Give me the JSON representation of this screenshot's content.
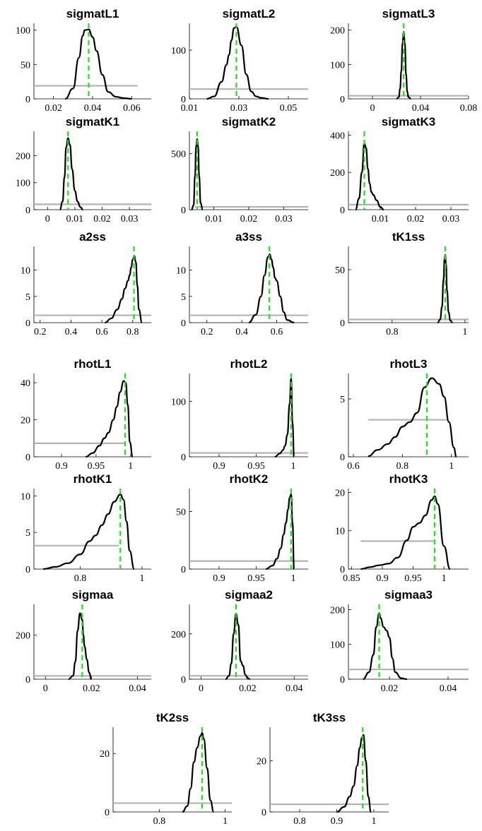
{
  "chart_data": [
    {
      "type": "line",
      "title": "sigmatL1",
      "xlim": [
        0.01,
        0.07
      ],
      "ylim": [
        0,
        110
      ],
      "xticks": [
        0.02,
        0.04,
        0.06
      ],
      "xtick_labels": [
        "0.02",
        "0.04",
        "0.06"
      ],
      "yticks": [
        0,
        50,
        100
      ],
      "ytick_labels": [
        "0",
        "50",
        "100"
      ],
      "prior": {
        "x": [
          0.01,
          0.063
        ],
        "y": 19
      },
      "mode": 0.038,
      "posterior": {
        "x": [
          0.026,
          0.03,
          0.033,
          0.035,
          0.036,
          0.038,
          0.04,
          0.042,
          0.045,
          0.048,
          0.052,
          0.056,
          0.06
        ],
        "y": [
          0,
          15,
          60,
          92,
          100,
          101,
          90,
          70,
          35,
          10,
          3,
          1,
          0
        ]
      }
    },
    {
      "type": "line",
      "title": "sigmatL2",
      "xlim": [
        0.01,
        0.058
      ],
      "ylim": [
        0,
        155
      ],
      "xticks": [
        0.01,
        0.03,
        0.05
      ],
      "xtick_labels": [
        "0.01",
        "0.03",
        "0.05"
      ],
      "yticks": [
        0,
        100
      ],
      "ytick_labels": [
        "0",
        "100"
      ],
      "prior": {
        "x": [
          0.01,
          0.058
        ],
        "y": 20
      },
      "mode": 0.029,
      "posterior": {
        "x": [
          0.017,
          0.02,
          0.023,
          0.025,
          0.026,
          0.027,
          0.028,
          0.029,
          0.031,
          0.033,
          0.035,
          0.037,
          0.039,
          0.042
        ],
        "y": [
          0,
          5,
          35,
          70,
          90,
          120,
          145,
          148,
          110,
          50,
          15,
          5,
          2,
          0
        ]
      }
    },
    {
      "type": "line",
      "title": "sigmatL3",
      "xlim": [
        -0.02,
        0.08
      ],
      "ylim": [
        0,
        220
      ],
      "xticks": [
        0,
        0.04,
        0.08
      ],
      "xtick_labels": [
        "0",
        "0.04",
        "0.08"
      ],
      "yticks": [
        0,
        100,
        200
      ],
      "ytick_labels": [
        "0",
        "100",
        "200"
      ],
      "prior": {
        "x": [
          -0.02,
          0.08
        ],
        "y": 9
      },
      "mode": 0.026,
      "posterior": {
        "x": [
          0.02,
          0.022,
          0.023,
          0.024,
          0.025,
          0.026,
          0.027,
          0.028,
          0.029,
          0.03,
          0.032
        ],
        "y": [
          0,
          5,
          30,
          80,
          160,
          195,
          160,
          70,
          20,
          5,
          0
        ]
      }
    },
    {
      "type": "line",
      "title": "sigmatK1",
      "xlim": [
        -0.005,
        0.038
      ],
      "ylim": [
        0,
        290
      ],
      "xticks": [
        0,
        0.01,
        0.02,
        0.03
      ],
      "xtick_labels": [
        "0",
        "0.01",
        "0.02",
        "0.03"
      ],
      "yticks": [
        0,
        100,
        200
      ],
      "ytick_labels": [
        "0",
        "100",
        "200"
      ],
      "prior": {
        "x": [
          -0.005,
          0.038
        ],
        "y": 20
      },
      "mode": 0.0075,
      "posterior": {
        "x": [
          0.0045,
          0.0055,
          0.0062,
          0.0068,
          0.0075,
          0.0082,
          0.009,
          0.01,
          0.011,
          0.012,
          0.013
        ],
        "y": [
          0,
          30,
          120,
          230,
          265,
          240,
          150,
          70,
          30,
          10,
          0
        ]
      }
    },
    {
      "type": "line",
      "title": "sigmatK2",
      "xlim": [
        0.003,
        0.037
      ],
      "ylim": [
        0,
        700
      ],
      "xticks": [
        0.01,
        0.02,
        0.03
      ],
      "xtick_labels": [
        "0.01",
        "0.02",
        "0.03"
      ],
      "yticks": [
        0,
        500
      ],
      "ytick_labels": [
        "0",
        "500"
      ],
      "prior": {
        "x": [
          0.0045,
          0.037
        ],
        "y": 25
      },
      "mode": 0.0052,
      "posterior": {
        "x": [
          0.0036,
          0.0042,
          0.0046,
          0.0049,
          0.0052,
          0.0055,
          0.0058,
          0.0062,
          0.0068
        ],
        "y": [
          0,
          40,
          300,
          560,
          630,
          560,
          300,
          60,
          0
        ]
      }
    },
    {
      "type": "line",
      "title": "sigmatK3",
      "xlim": [
        0.001,
        0.035
      ],
      "ylim": [
        0,
        420
      ],
      "xticks": [
        0.01,
        0.02,
        0.03
      ],
      "xtick_labels": [
        "0.01",
        "0.02",
        "0.03"
      ],
      "yticks": [
        0,
        200,
        400
      ],
      "ytick_labels": [
        "0",
        "200",
        "400"
      ],
      "prior": {
        "x": [
          0.001,
          0.035
        ],
        "y": 27
      },
      "mode": 0.0055,
      "posterior": {
        "x": [
          0.003,
          0.004,
          0.0048,
          0.0055,
          0.006,
          0.0065,
          0.007,
          0.0075,
          0.008,
          0.009,
          0.01,
          0.011
        ],
        "y": [
          0,
          60,
          200,
          355,
          330,
          220,
          140,
          95,
          80,
          50,
          15,
          0
        ]
      }
    },
    {
      "type": "line",
      "title": "a2ss",
      "xlim": [
        0.16,
        0.92
      ],
      "ylim": [
        0,
        14.5
      ],
      "xticks": [
        0.2,
        0.4,
        0.6,
        0.8
      ],
      "xtick_labels": [
        "0.2",
        "0.4",
        "0.6",
        "0.8"
      ],
      "yticks": [
        0,
        5,
        10
      ],
      "ytick_labels": [
        "0",
        "5",
        "10"
      ],
      "prior": {
        "x": [
          0.16,
          0.92
        ],
        "y": 1.4
      },
      "mode": 0.808,
      "posterior": {
        "x": [
          0.62,
          0.66,
          0.7,
          0.73,
          0.75,
          0.77,
          0.78,
          0.79,
          0.8,
          0.81,
          0.82,
          0.83,
          0.84,
          0.86
        ],
        "y": [
          0,
          0.8,
          2.5,
          4.5,
          6.5,
          8,
          9,
          10.5,
          12,
          12.7,
          11.5,
          7,
          2.5,
          0
        ]
      }
    },
    {
      "type": "line",
      "title": "a3ss",
      "xlim": [
        0.1,
        0.78
      ],
      "ylim": [
        0,
        14.5
      ],
      "xticks": [
        0.2,
        0.4,
        0.6
      ],
      "xtick_labels": [
        "0.2",
        "0.4",
        "0.6"
      ],
      "yticks": [
        0,
        5,
        10
      ],
      "ytick_labels": [
        "0",
        "5",
        "10"
      ],
      "prior": {
        "x": [
          0.1,
          0.78
        ],
        "y": 1.4
      },
      "mode": 0.558,
      "posterior": {
        "x": [
          0.44,
          0.48,
          0.51,
          0.53,
          0.55,
          0.56,
          0.57,
          0.58,
          0.59,
          0.6,
          0.62,
          0.64,
          0.66,
          0.7
        ],
        "y": [
          0,
          1.5,
          5,
          9,
          12.5,
          13,
          12,
          10.5,
          8.5,
          8,
          5,
          2,
          0.5,
          0
        ]
      }
    },
    {
      "type": "line",
      "title": "tK1ss",
      "xlim": [
        0.68,
        1.01
      ],
      "ylim": [
        0,
        72
      ],
      "xticks": [
        0.8,
        1
      ],
      "xtick_labels": [
        "0.8",
        "1"
      ],
      "yticks": [
        0,
        50
      ],
      "ytick_labels": [
        "0",
        "50"
      ],
      "prior": {
        "x": [
          0.68,
          1.01
        ],
        "y": 3
      },
      "mode": 0.946,
      "posterior": {
        "x": [
          0.925,
          0.932,
          0.937,
          0.941,
          0.944,
          0.946,
          0.948,
          0.951,
          0.955,
          0.96,
          0.966
        ],
        "y": [
          0,
          3,
          15,
          40,
          60,
          64,
          55,
          30,
          10,
          2,
          0
        ]
      }
    },
    {
      "type": "line",
      "title": "rhotL1",
      "xlim": [
        0.86,
        1.03
      ],
      "ylim": [
        0,
        45
      ],
      "xticks": [
        0.9,
        0.95,
        1
      ],
      "xtick_labels": [
        "0.9",
        "0.95",
        "1"
      ],
      "yticks": [
        0,
        20,
        40
      ],
      "ytick_labels": [
        "0",
        "20",
        "40"
      ],
      "prior": {
        "x": [
          0.86,
          0.993
        ],
        "y": 7.3
      },
      "mode": 0.992,
      "posterior": {
        "x": [
          0.935,
          0.945,
          0.955,
          0.962,
          0.968,
          0.975,
          0.98,
          0.985,
          0.99,
          0.993,
          0.996,
          0.999,
          1.003
        ],
        "y": [
          0,
          2,
          6,
          10,
          13,
          20,
          27,
          35,
          41,
          40,
          28,
          8,
          0
        ]
      }
    },
    {
      "type": "line",
      "title": "rhotL2",
      "xlim": [
        0.86,
        1.02
      ],
      "ylim": [
        0,
        150
      ],
      "xticks": [
        0.9,
        0.95,
        1
      ],
      "xtick_labels": [
        "0.9",
        "0.95",
        "1"
      ],
      "yticks": [
        0,
        100
      ],
      "ytick_labels": [
        "0",
        "100"
      ],
      "prior": {
        "x": [
          0.86,
          1.02
        ],
        "y": 7
      },
      "mode": 0.997,
      "posterior": {
        "x": [
          0.975,
          0.982,
          0.986,
          0.989,
          0.992,
          0.995,
          0.997,
          0.999,
          1.001
        ],
        "y": [
          0,
          6,
          12,
          20,
          40,
          95,
          140,
          60,
          0
        ]
      }
    },
    {
      "type": "line",
      "title": "rhotL3",
      "xlim": [
        0.58,
        1.07
      ],
      "ylim": [
        0,
        7.2
      ],
      "xticks": [
        0.6,
        0.8,
        1
      ],
      "xtick_labels": [
        "0.6",
        "0.8",
        "1"
      ],
      "yticks": [
        0,
        5
      ],
      "ytick_labels": [
        "0",
        "5"
      ],
      "prior": {
        "x": [
          0.66,
          0.985
        ],
        "y": 3.2
      },
      "mode": 0.9,
      "posterior": {
        "x": [
          0.66,
          0.7,
          0.74,
          0.77,
          0.8,
          0.83,
          0.86,
          0.89,
          0.92,
          0.95,
          0.97,
          0.99,
          1.01,
          1.02
        ],
        "y": [
          0.05,
          0.6,
          1.1,
          1.7,
          2.6,
          3.0,
          3.8,
          6.0,
          6.8,
          6.3,
          5.2,
          3.0,
          0.8,
          0
        ]
      }
    },
    {
      "type": "line",
      "title": "rhotK1",
      "xlim": [
        0.65,
        1.03
      ],
      "ylim": [
        0,
        11
      ],
      "xticks": [
        0.8,
        1
      ],
      "xtick_labels": [
        "0.8",
        "1"
      ],
      "yticks": [
        0,
        5,
        10
      ],
      "ytick_labels": [
        "0",
        "5",
        "10"
      ],
      "prior": {
        "x": [
          0.65,
          0.925
        ],
        "y": 3.2
      },
      "mode": 0.93,
      "posterior": {
        "x": [
          0.68,
          0.72,
          0.76,
          0.8,
          0.83,
          0.85,
          0.87,
          0.89,
          0.91,
          0.93,
          0.94,
          0.95,
          0.96,
          0.975
        ],
        "y": [
          0,
          0.3,
          0.8,
          2.0,
          3.8,
          4.6,
          6.0,
          7.5,
          9.2,
          10.2,
          9.5,
          6.5,
          2.5,
          0
        ]
      }
    },
    {
      "type": "line",
      "title": "rhotK2",
      "xlim": [
        0.86,
        1.02
      ],
      "ylim": [
        0,
        70
      ],
      "xticks": [
        0.9,
        0.95,
        1
      ],
      "xtick_labels": [
        "0.9",
        "0.95",
        "1"
      ],
      "yticks": [
        0,
        50
      ],
      "ytick_labels": [
        "0",
        "50"
      ],
      "prior": {
        "x": [
          0.86,
          1.02
        ],
        "y": 7
      },
      "mode": 0.997,
      "posterior": {
        "x": [
          0.963,
          0.972,
          0.978,
          0.983,
          0.987,
          0.99,
          0.993,
          0.995,
          0.997,
          0.999,
          1.001
        ],
        "y": [
          0,
          3,
          9,
          18,
          30,
          40,
          52,
          62,
          65,
          40,
          0
        ]
      }
    },
    {
      "type": "line",
      "title": "rhotK3",
      "xlim": [
        0.845,
        1.04
      ],
      "ylim": [
        0,
        21
      ],
      "xticks": [
        0.85,
        0.9,
        0.95,
        1
      ],
      "xtick_labels": [
        "0.85",
        "0.9",
        "0.95",
        "1"
      ],
      "yticks": [
        0,
        10,
        20
      ],
      "ytick_labels": [
        "0",
        "10",
        "20"
      ],
      "prior": {
        "x": [
          0.865,
          0.985
        ],
        "y": 7.3
      },
      "mode": 0.985,
      "posterior": {
        "x": [
          0.865,
          0.88,
          0.895,
          0.91,
          0.925,
          0.94,
          0.95,
          0.96,
          0.97,
          0.98,
          0.985,
          0.99,
          1.0,
          1.01
        ],
        "y": [
          0,
          0.5,
          1.0,
          1.4,
          3.0,
          7.5,
          11,
          12,
          14,
          18,
          19,
          17,
          6,
          0
        ]
      }
    },
    {
      "type": "line",
      "title": "sigmaa",
      "xlim": [
        -0.005,
        0.046
      ],
      "ylim": [
        0,
        340
      ],
      "xticks": [
        0,
        0.02,
        0.04
      ],
      "xtick_labels": [
        "0",
        "0.02",
        "0.04"
      ],
      "yticks": [
        0,
        200
      ],
      "ytick_labels": [
        "0",
        "200"
      ],
      "prior": {
        "x": [
          -0.005,
          0.046
        ],
        "y": 15
      },
      "mode": 0.016,
      "posterior": {
        "x": [
          0.01,
          0.012,
          0.013,
          0.014,
          0.015,
          0.016,
          0.0165,
          0.017,
          0.018,
          0.019,
          0.02
        ],
        "y": [
          0,
          15,
          80,
          220,
          300,
          270,
          200,
          150,
          90,
          30,
          0
        ]
      }
    },
    {
      "type": "line",
      "title": "sigmaa2",
      "xlim": [
        -0.005,
        0.046
      ],
      "ylim": [
        0,
        330
      ],
      "xticks": [
        0,
        0.02,
        0.04
      ],
      "xtick_labels": [
        "0",
        "0.02",
        "0.04"
      ],
      "yticks": [
        0,
        200
      ],
      "ytick_labels": [
        "0",
        "200"
      ],
      "prior": {
        "x": [
          -0.005,
          0.046
        ],
        "y": 15
      },
      "mode": 0.015,
      "posterior": {
        "x": [
          0.0105,
          0.012,
          0.013,
          0.014,
          0.015,
          0.016,
          0.017,
          0.018,
          0.019,
          0.02,
          0.021
        ],
        "y": [
          0,
          15,
          70,
          200,
          290,
          240,
          80,
          60,
          20,
          5,
          0
        ]
      }
    },
    {
      "type": "line",
      "title": "sigmaa3",
      "xlim": [
        0.006,
        0.047
      ],
      "ylim": [
        0,
        215
      ],
      "xticks": [
        0.02,
        0.04
      ],
      "xtick_labels": [
        "0.02",
        "0.04"
      ],
      "yticks": [
        0,
        100,
        200
      ],
      "ytick_labels": [
        "0",
        "100",
        "200"
      ],
      "prior": {
        "x": [
          0.006,
          0.047
        ],
        "y": 28
      },
      "mode": 0.0165,
      "posterior": {
        "x": [
          0.011,
          0.013,
          0.0145,
          0.0155,
          0.0165,
          0.017,
          0.018,
          0.019,
          0.02,
          0.021,
          0.022,
          0.024,
          0.026
        ],
        "y": [
          0,
          20,
          70,
          150,
          190,
          175,
          150,
          140,
          120,
          60,
          20,
          3,
          0
        ]
      }
    },
    {
      "type": "line",
      "title": "tK2ss",
      "xlim": [
        0.66,
        1.02
      ],
      "ylim": [
        0,
        29
      ],
      "xticks": [
        0.8,
        1
      ],
      "xtick_labels": [
        "0.8",
        "1"
      ],
      "yticks": [
        0,
        20
      ],
      "ytick_labels": [
        "0",
        "20"
      ],
      "prior": {
        "x": [
          0.66,
          1.02
        ],
        "y": 3
      },
      "mode": 0.93,
      "posterior": {
        "x": [
          0.87,
          0.885,
          0.895,
          0.905,
          0.915,
          0.925,
          0.93,
          0.935,
          0.945,
          0.955,
          0.965
        ],
        "y": [
          0,
          2,
          8,
          17,
          22,
          26,
          27,
          25,
          15,
          4,
          0
        ]
      }
    },
    {
      "type": "line",
      "title": "tK3ss",
      "xlim": [
        0.72,
        1.04
      ],
      "ylim": [
        0,
        33
      ],
      "xticks": [
        0.8,
        0.9,
        1
      ],
      "xtick_labels": [
        "0.8",
        "0.9",
        "1"
      ],
      "yticks": [
        0,
        20
      ],
      "ytick_labels": [
        "0",
        "20"
      ],
      "prior": {
        "x": [
          0.72,
          1.04
        ],
        "y": 3
      },
      "mode": 0.97,
      "posterior": {
        "x": [
          0.9,
          0.92,
          0.935,
          0.945,
          0.955,
          0.962,
          0.968,
          0.972,
          0.978,
          0.985,
          0.992
        ],
        "y": [
          0,
          2,
          6,
          10,
          18,
          25,
          29,
          30,
          20,
          6,
          0
        ]
      }
    }
  ]
}
